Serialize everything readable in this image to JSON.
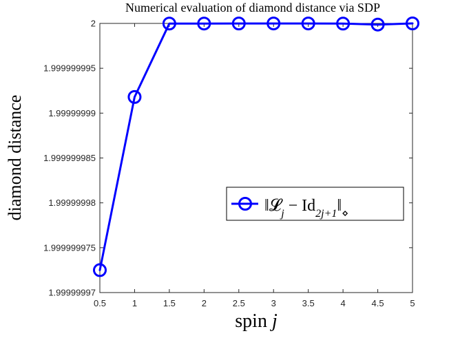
{
  "chart_data": {
    "type": "line",
    "title": "Numerical evaluation of diamond distance via SDP",
    "xlabel": "spin j",
    "ylabel": "diamond distance",
    "x": [
      0.5,
      1,
      1.5,
      2,
      2.5,
      3,
      3.5,
      4,
      4.5,
      5
    ],
    "series": [
      {
        "name": "‖𝓛_j − Id_{2j+1}‖_⋄",
        "color": "#0000ff",
        "marker": "circle",
        "values": [
          1.9999999725,
          1.9999999918,
          1.999999999985,
          1.999999999985,
          1.99999999999,
          1.999999999995,
          1.999999999995,
          1.99999999998,
          1.99999999987,
          2.0
        ]
      }
    ],
    "xlim": [
      0.5,
      5
    ],
    "ylim": [
      1.99999997,
      2.0
    ],
    "xticks": [
      "0.5",
      "1",
      "1.5",
      "2",
      "2.5",
      "3",
      "3.5",
      "4",
      "4.5",
      "5"
    ],
    "yticks": [
      "1.99999997",
      "1.999999975",
      "1.99999998",
      "1.999999985",
      "1.99999999",
      "1.999999995",
      "2"
    ],
    "grid": false,
    "legend_position": "middle-right",
    "axis_color": "#262626"
  }
}
